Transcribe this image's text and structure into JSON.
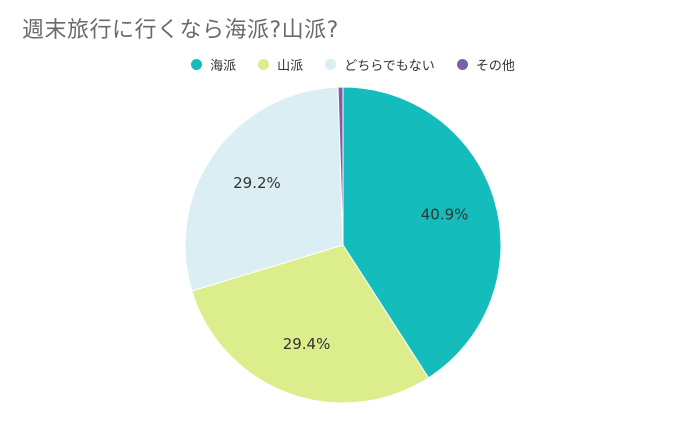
{
  "chart_data": {
    "type": "pie",
    "title": "週末旅行に行くなら海派?山派?",
    "legend_position": "top",
    "slices": [
      {
        "name": "海派",
        "value": 40.9,
        "label": "40.9%",
        "color": "#14bcbb"
      },
      {
        "name": "山派",
        "value": 29.4,
        "label": "29.4%",
        "color": "#dcee8c"
      },
      {
        "name": "どちらでもない",
        "value": 29.2,
        "label": "29.2%",
        "color": "#dbeef3"
      },
      {
        "name": "その他",
        "value": 0.5,
        "label": "",
        "color": "#7c5fa8"
      }
    ]
  }
}
